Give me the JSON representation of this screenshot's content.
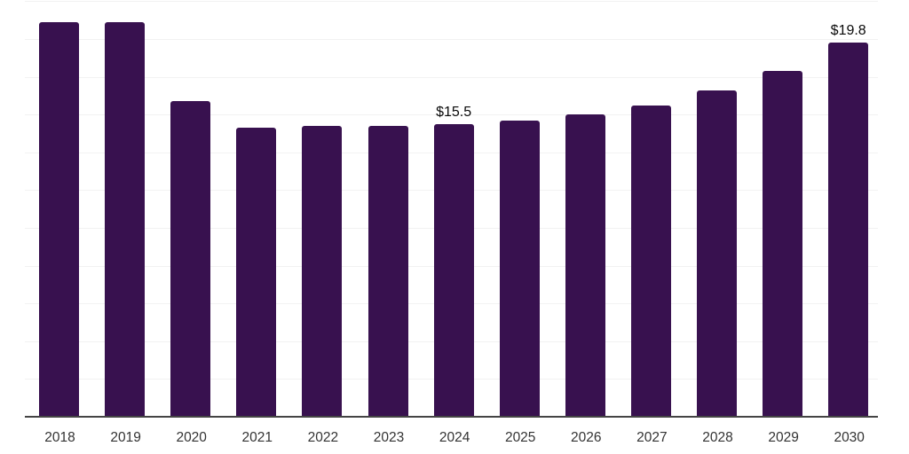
{
  "chart_data": {
    "type": "bar",
    "title": "",
    "xlabel": "",
    "ylabel": "",
    "categories": [
      "2018",
      "2019",
      "2020",
      "2021",
      "2022",
      "2023",
      "2024",
      "2025",
      "2026",
      "2027",
      "2028",
      "2029",
      "2030"
    ],
    "values": [
      20.9,
      20.9,
      16.7,
      15.3,
      15.4,
      15.4,
      15.5,
      15.7,
      16.0,
      16.5,
      17.3,
      18.3,
      19.8
    ],
    "data_labels": {
      "2024": "$15.5",
      "2030": "$19.8"
    },
    "ylim": [
      0,
      22
    ],
    "gridline_values": [
      2,
      4,
      6,
      8,
      10,
      12,
      14,
      16,
      18,
      20,
      22
    ],
    "grid": "horizontal",
    "legend": "none",
    "colors": {
      "bar": "#38114f",
      "gridline": "#f2f2f2",
      "axis": "#444444",
      "x_label": "#333333",
      "data_label": "#0a0a0a"
    }
  }
}
